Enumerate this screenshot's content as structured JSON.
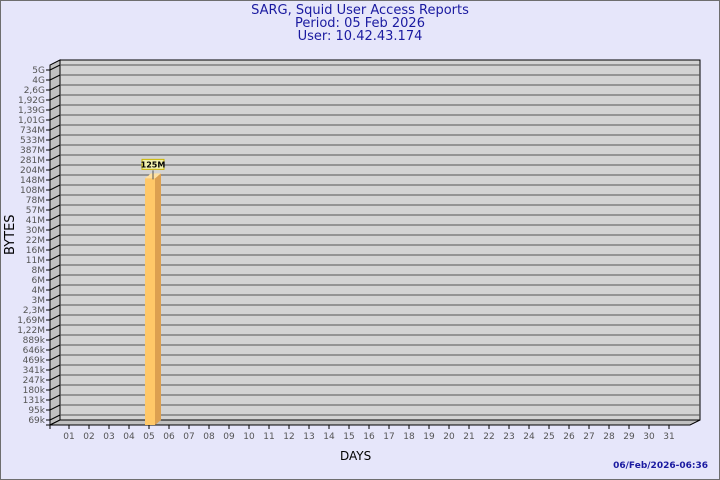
{
  "header": {
    "title": "SARG, Squid User Access Reports",
    "period": "Period: 05 Feb 2026",
    "user": "User: 10.42.43.174"
  },
  "footer": {
    "generated": "06/Feb/2026-06:36"
  },
  "chart_data": {
    "type": "bar",
    "xlabel": "DAYS",
    "ylabel": "BYTES",
    "y_scale": "log",
    "grid": true,
    "categories": [
      "01",
      "02",
      "03",
      "04",
      "05",
      "06",
      "07",
      "08",
      "09",
      "10",
      "11",
      "12",
      "13",
      "14",
      "15",
      "16",
      "17",
      "18",
      "19",
      "20",
      "21",
      "22",
      "23",
      "24",
      "25",
      "26",
      "27",
      "28",
      "29",
      "30",
      "31"
    ],
    "y_ticks": [
      "5G",
      "4G",
      "2,6G",
      "1,92G",
      "1,39G",
      "1,01G",
      "734M",
      "533M",
      "387M",
      "281M",
      "204M",
      "148M",
      "108M",
      "78M",
      "57M",
      "41M",
      "30M",
      "22M",
      "16M",
      "11M",
      "8M",
      "6M",
      "4M",
      "3M",
      "2,3M",
      "1,69M",
      "1,22M",
      "889k",
      "646k",
      "469k",
      "341k",
      "247k",
      "180k",
      "131k",
      "95k",
      "69k"
    ],
    "bars": [
      {
        "day": "05",
        "value_bytes": 125000000,
        "label": "125M"
      }
    ],
    "colors": {
      "bar_front": "#ffc868",
      "bar_side": "#dca050",
      "bar_top": "#ffe0a0",
      "plot_bg": "#d3d3d3",
      "wall": "#c0c0c0",
      "title": "#1a1aa0"
    }
  }
}
